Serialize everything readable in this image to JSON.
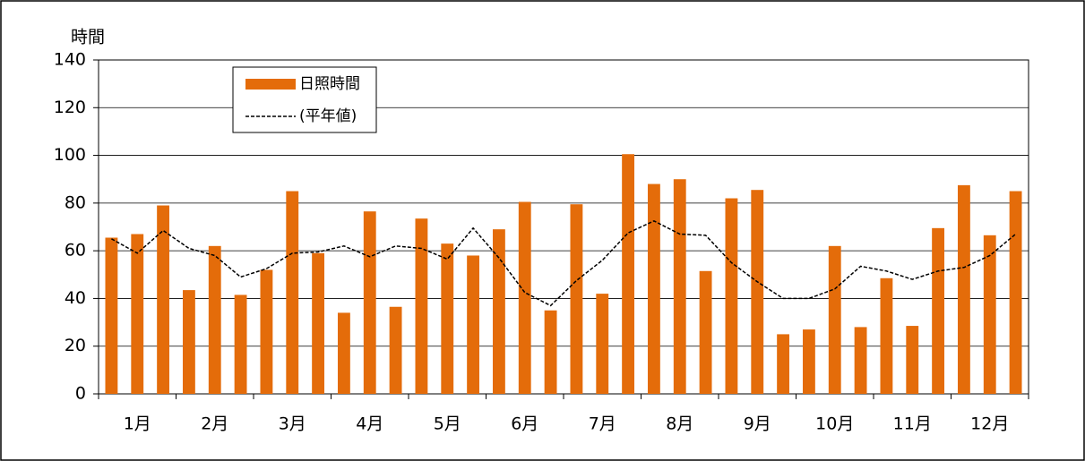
{
  "chart_data": {
    "type": "bar",
    "y_label": "時間",
    "categories": [
      null,
      "1月",
      null,
      null,
      "2月",
      null,
      null,
      "3月",
      null,
      null,
      "4月",
      null,
      null,
      "5月",
      null,
      null,
      "6月",
      null,
      null,
      "7月",
      null,
      null,
      "8月",
      null,
      null,
      "9月",
      null,
      null,
      "10月",
      null,
      null,
      "11月",
      null,
      null,
      "12月",
      null
    ],
    "series": [
      {
        "name": "日照時間",
        "type": "bar",
        "color": "#e46c0a",
        "values": [
          65.5,
          67,
          79,
          43.5,
          62,
          41.5,
          52,
          85,
          59,
          34,
          76.5,
          36.5,
          73.5,
          63,
          58,
          69,
          80.5,
          35,
          79.5,
          42,
          100.5,
          88,
          90,
          51.5,
          82,
          85.5,
          25,
          27,
          62,
          28,
          48.5,
          28.5,
          69.5,
          87.5,
          66.5,
          85
        ]
      },
      {
        "name": "(平年値)",
        "type": "line",
        "color": "#000000",
        "dashed": true,
        "values": [
          65,
          59,
          68.5,
          61,
          58,
          49,
          52.5,
          59,
          59.5,
          62,
          57.5,
          62,
          61,
          56.5,
          69.5,
          57,
          42.5,
          37,
          47.5,
          56,
          67.5,
          72.5,
          67,
          66.5,
          55,
          47,
          40,
          40,
          44,
          53.5,
          51.5,
          48,
          51.5,
          53,
          58,
          67
        ]
      }
    ],
    "ylim": [
      0,
      140
    ],
    "yticks": [
      0,
      20,
      40,
      60,
      80,
      100,
      120,
      140
    ],
    "grid": true,
    "legend": "upper left"
  }
}
